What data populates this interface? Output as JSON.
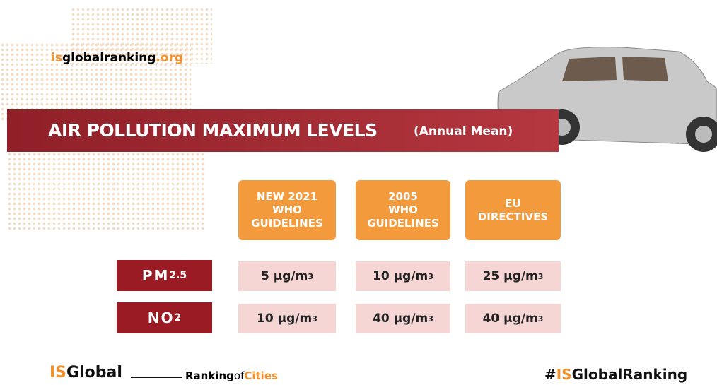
{
  "header": {
    "site": {
      "prefix": "is",
      "main": "globalranking",
      "suffix": ".org"
    },
    "title": "AIR POLLUTION MAXIMUM LEVELS",
    "subtitle": "(Annual Mean)"
  },
  "table": {
    "columns": [
      [
        "NEW 2021",
        "WHO",
        "GUIDELINES"
      ],
      [
        "2005",
        "WHO",
        "GUIDELINES"
      ],
      [
        "EU",
        "DIRECTIVES"
      ]
    ],
    "rows": [
      {
        "label": "PM",
        "sub": "2.5",
        "cells": [
          {
            "text": "5 µg/m",
            "sup": "3"
          },
          {
            "text": "10 µg/m",
            "sup": "3"
          },
          {
            "text": "25 µg/m",
            "sup": "3"
          }
        ]
      },
      {
        "label": "NO",
        "sub": "2",
        "cells": [
          {
            "text": "10 µg/m",
            "sup": "3"
          },
          {
            "text": "40 µg/m",
            "sup": "3"
          },
          {
            "text": "40 µg/m",
            "sup": "3"
          }
        ]
      }
    ]
  },
  "footer": {
    "brand": {
      "prefix": "IS",
      "main": "Global"
    },
    "ranking": {
      "word": "Ranking",
      "of": "of",
      "cities": "Cities"
    },
    "hashtag": {
      "hash": "#",
      "prefix": "IS",
      "main": "GlobalRanking"
    }
  }
}
